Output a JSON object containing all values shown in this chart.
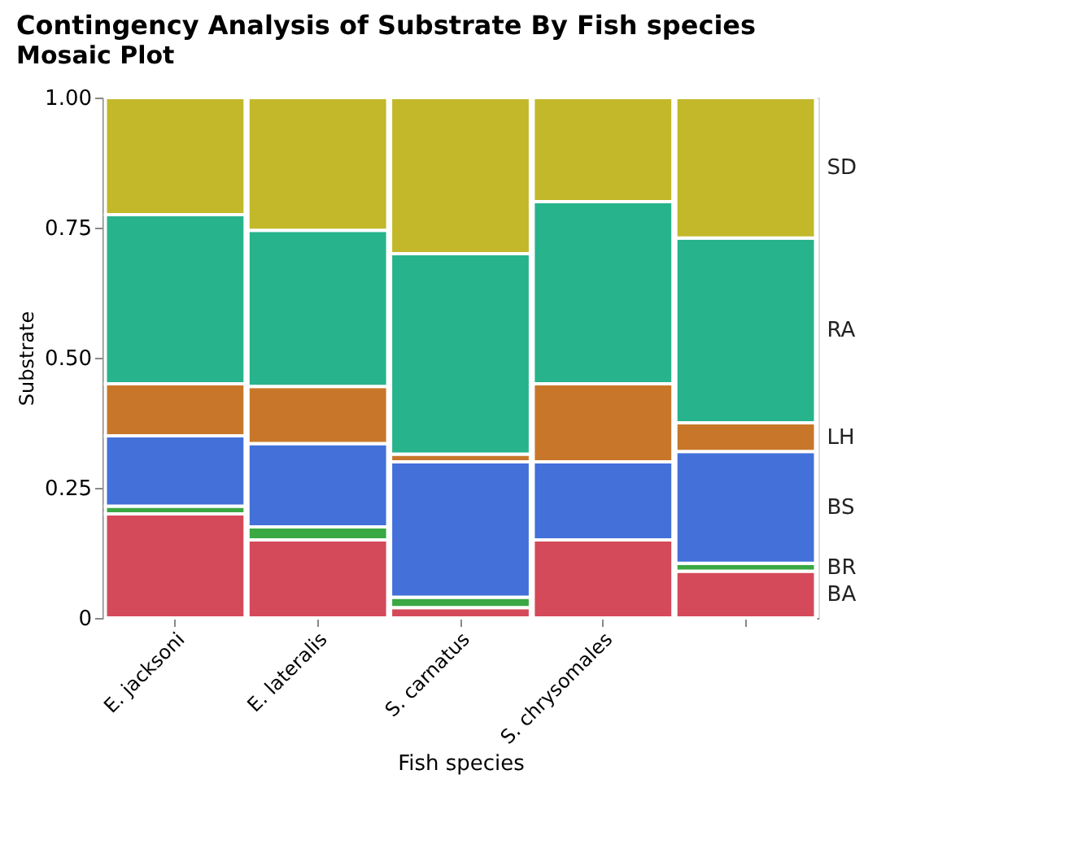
{
  "chart_data": {
    "type": "bar",
    "stacked": true,
    "title": "Contingency Analysis of Substrate By Fish species",
    "subtitle": "Mosaic Plot",
    "xlabel": "Fish species",
    "ylabel": "Substrate",
    "categories": [
      "E. jacksoni",
      "E. lateralis",
      "S. carnatus",
      "S. chrysomales",
      null
    ],
    "series": [
      {
        "name": "BA",
        "color": "#d44a5a",
        "values": [
          0.2,
          0.15,
          0.02,
          0.15,
          0.09
        ]
      },
      {
        "name": "BR",
        "color": "#3aa843",
        "values": [
          0.015,
          0.025,
          0.02,
          0,
          0.015
        ]
      },
      {
        "name": "BS",
        "color": "#4370d9",
        "values": [
          0.135,
          0.16,
          0.26,
          0.15,
          0.215
        ]
      },
      {
        "name": "LH",
        "color": "#c8772a",
        "values": [
          0.1,
          0.11,
          0.015,
          0.15,
          0.055
        ]
      },
      {
        "name": "RA",
        "color": "#27b38c",
        "values": [
          0.325,
          0.3,
          0.385,
          0.35,
          0.355
        ]
      },
      {
        "name": "SD",
        "color": "#c2b82a",
        "values": [
          0.225,
          0.255,
          0.3,
          0.2,
          0.27
        ]
      }
    ],
    "ylim": [
      0,
      1
    ],
    "yticks": [
      0,
      {
        "value": 0.25,
        "label": "0.25"
      },
      {
        "value": 0.5,
        "label": "0.50"
      },
      {
        "value": 0.75,
        "label": "0.75"
      },
      {
        "value": 1,
        "label": "1.00"
      }
    ],
    "grid": false,
    "legend": false
  }
}
